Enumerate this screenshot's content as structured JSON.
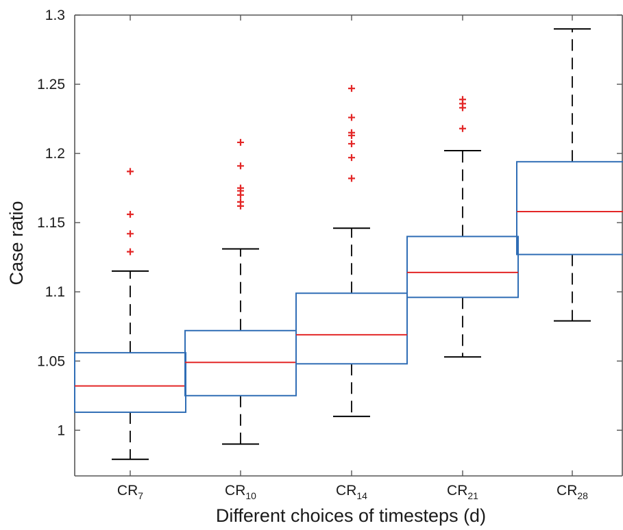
{
  "chart_data": {
    "type": "box",
    "xlabel": "Different choices of timesteps (d)",
    "ylabel": "Case ratio",
    "ylim": [
      0.967,
      1.3
    ],
    "yticks": [
      1,
      1.05,
      1.1,
      1.15,
      1.2,
      1.25,
      1.3
    ],
    "ytick_labels": [
      "1",
      "1.05",
      "1.1",
      "1.15",
      "1.2",
      "1.25",
      "1.3"
    ],
    "grid": false,
    "colors": {
      "box": "#2f6db5",
      "median": "#e32626",
      "whisker": "#000000",
      "outlier": "#e32626",
      "axis": "#555555"
    },
    "categories": [
      {
        "base": "CR",
        "sub": "7"
      },
      {
        "base": "CR",
        "sub": "10"
      },
      {
        "base": "CR",
        "sub": "14"
      },
      {
        "base": "CR",
        "sub": "21"
      },
      {
        "base": "CR",
        "sub": "28"
      }
    ],
    "boxes": [
      {
        "whisker_low": 0.979,
        "q1": 1.013,
        "median": 1.032,
        "q3": 1.056,
        "whisker_high": 1.115,
        "outliers": [
          1.129,
          1.142,
          1.156,
          1.187
        ]
      },
      {
        "whisker_low": 0.99,
        "q1": 1.025,
        "median": 1.049,
        "q3": 1.072,
        "whisker_high": 1.131,
        "outliers": [
          1.162,
          1.165,
          1.17,
          1.173,
          1.175,
          1.191,
          1.208
        ]
      },
      {
        "whisker_low": 1.01,
        "q1": 1.048,
        "median": 1.069,
        "q3": 1.099,
        "whisker_high": 1.146,
        "outliers": [
          1.182,
          1.197,
          1.207,
          1.213,
          1.215,
          1.226,
          1.247
        ]
      },
      {
        "whisker_low": 1.053,
        "q1": 1.096,
        "median": 1.114,
        "q3": 1.14,
        "whisker_high": 1.202,
        "outliers": [
          1.218,
          1.233,
          1.236,
          1.239
        ]
      },
      {
        "whisker_low": 1.079,
        "q1": 1.127,
        "median": 1.158,
        "q3": 1.194,
        "whisker_high": 1.29,
        "outliers": []
      }
    ]
  }
}
